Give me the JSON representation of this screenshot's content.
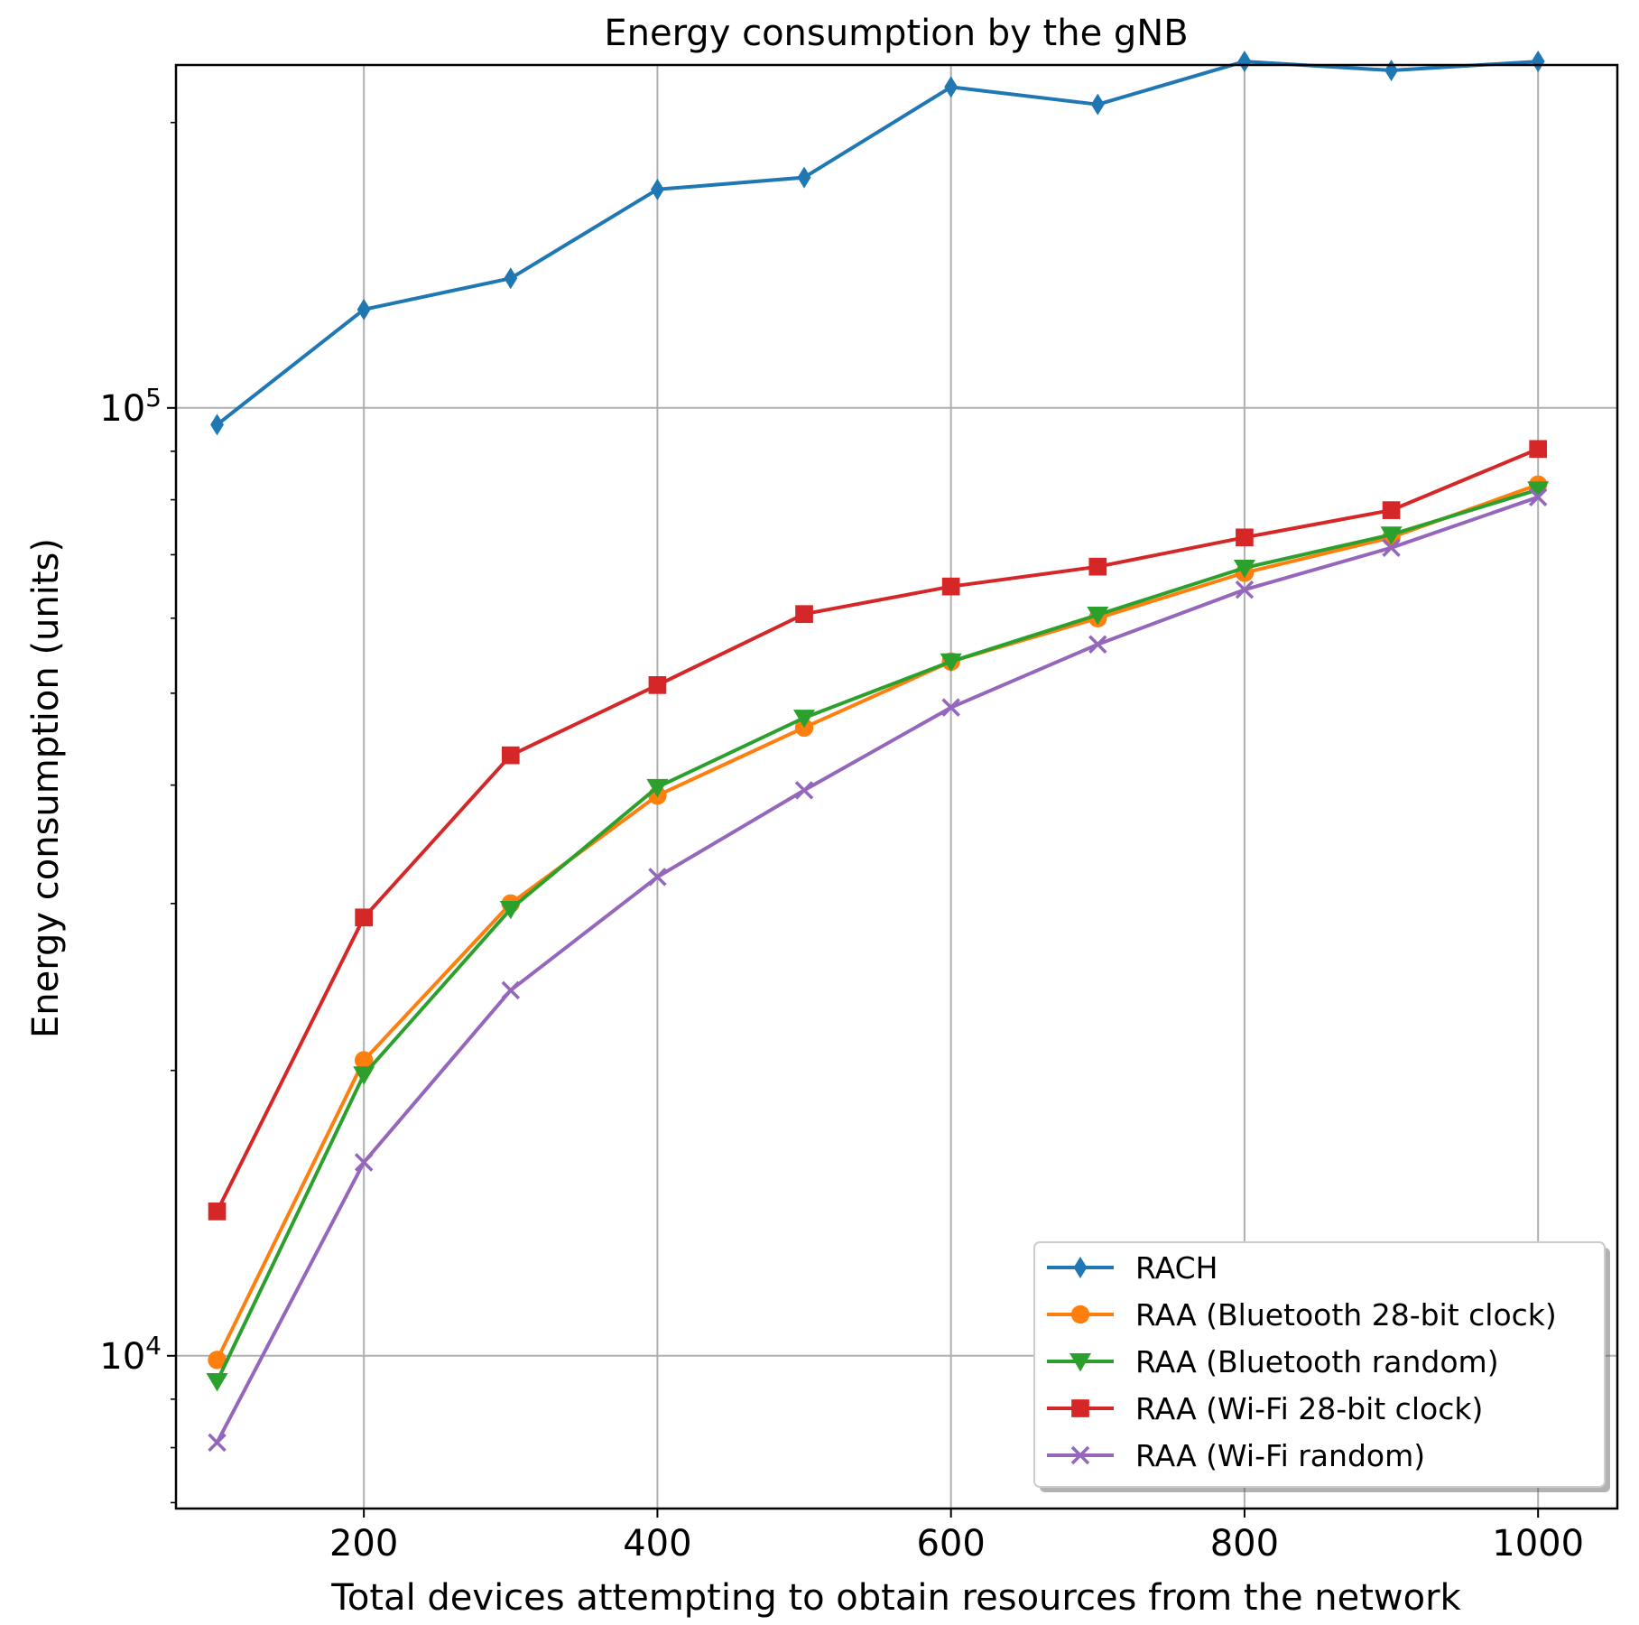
{
  "chart_data": {
    "type": "line",
    "title": "Energy consumption by the gNB",
    "xlabel": "Total devices attempting to obtain resources from the network",
    "ylabel": "Energy consumption (units)",
    "yscale": "log",
    "xlim": [
      72,
      1054
    ],
    "ylim": [
      6900,
      230000
    ],
    "grid": true,
    "legend_position": "lower-right",
    "x_ticks": [
      {
        "value": 200,
        "label": "200"
      },
      {
        "value": 400,
        "label": "400"
      },
      {
        "value": 600,
        "label": "600"
      },
      {
        "value": 800,
        "label": "800"
      },
      {
        "value": 1000,
        "label": "1000"
      }
    ],
    "y_ticks": [
      {
        "value": 10000,
        "base": "10",
        "exp": "4"
      },
      {
        "value": 100000,
        "base": "10",
        "exp": "5"
      }
    ],
    "x": [
      100,
      200,
      300,
      400,
      500,
      600,
      700,
      800,
      900,
      1000
    ],
    "series": [
      {
        "name": "RACH",
        "color": "#1f77b4",
        "marker": "diamond",
        "values": [
          96000,
          127000,
          137000,
          170000,
          175000,
          218000,
          209000,
          232000,
          227000,
          232000
        ]
      },
      {
        "name": "RAA (Bluetooth 28-bit clock)",
        "color": "#ff7f0e",
        "marker": "circle",
        "values": [
          9900,
          20500,
          30000,
          39000,
          46000,
          54000,
          60000,
          67000,
          73000,
          83000
        ]
      },
      {
        "name": "RAA (Bluetooth random)",
        "color": "#2ca02c",
        "marker": "triangle-down",
        "values": [
          9400,
          19800,
          29600,
          39800,
          47100,
          54000,
          60500,
          67800,
          73500,
          82000
        ]
      },
      {
        "name": "RAA (Wi-Fi 28-bit clock)",
        "color": "#d62728",
        "marker": "square",
        "values": [
          14200,
          29000,
          43000,
          51000,
          60600,
          64800,
          68000,
          73000,
          78000,
          90500
        ]
      },
      {
        "name": "RAA (Wi-Fi random)",
        "color": "#9467bd",
        "marker": "x",
        "values": [
          8100,
          16000,
          24300,
          32000,
          39500,
          48300,
          56300,
          64300,
          71200,
          80500
        ]
      }
    ]
  }
}
